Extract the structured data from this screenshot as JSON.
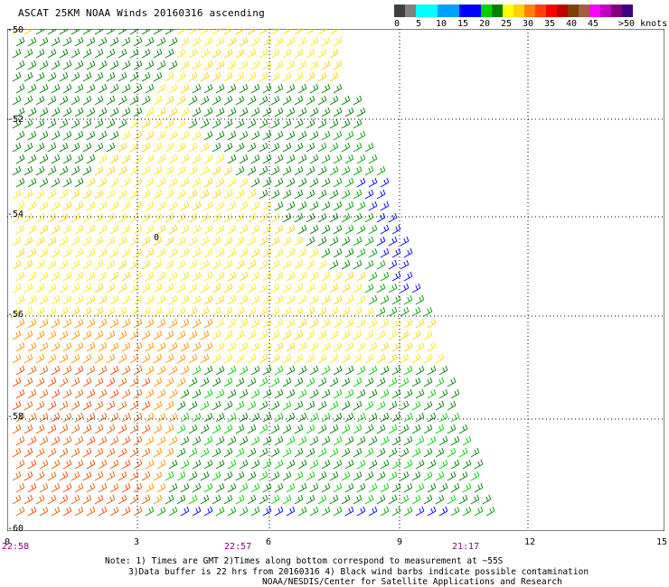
{
  "title": "ASCAT 25KM NOAA Winds 20160316 ascending",
  "colorbar": {
    "colors": [
      "#404040",
      "#808080",
      "#00ffff",
      "#00a0ff",
      "#0000ff",
      "#00d000",
      "#008000",
      "#ffff00",
      "#ffd000",
      "#ff8000",
      "#ff4000",
      "#ff0000",
      "#c00000",
      "#804000",
      "#a06040",
      "#ff00ff",
      "#c000c0",
      "#800080",
      "#400080"
    ],
    "labels": [
      "0",
      "5",
      "10",
      "15",
      "20",
      "25",
      "30",
      "35",
      "40",
      "45",
      ">50 knots"
    ]
  },
  "axes": {
    "y_labels": [
      "-50",
      "-52",
      "-54",
      "-56",
      "-58",
      "-60"
    ],
    "x_labels": [
      "0",
      "3",
      "6",
      "9",
      "12",
      "15"
    ],
    "time_labels": [
      "22:58",
      "22:57",
      "21:17"
    ]
  },
  "annotation_zero": "0",
  "notes": [
    "Note: 1) Times are GMT 2)Times along bottom correspond to measurement at ~55S",
    "3)Data buffer is 22 hrs from 20160316 4) Black wind barbs indicate possible contamination",
    "NOAA/NESDIS/Center for Satellite Applications and Research"
  ]
}
